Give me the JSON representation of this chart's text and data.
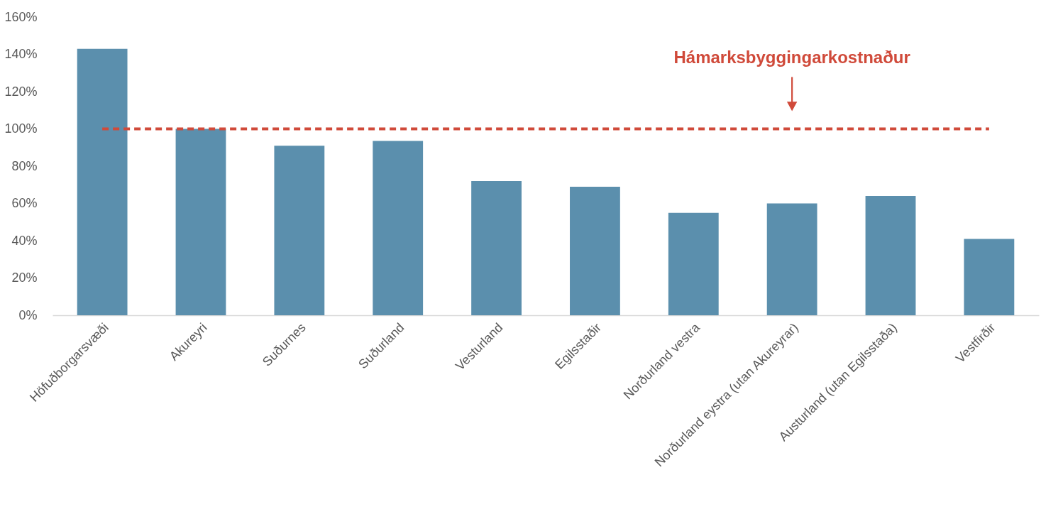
{
  "chart_data": {
    "type": "bar",
    "categories": [
      "Höfuðborgarsvæði",
      "Akureyri",
      "Suðurnes",
      "Suðurland",
      "Vesturland",
      "Egilsstaðir",
      "Norðurland vestra",
      "Norðurland eystra (utan Akureyrar)",
      "Austurland (utan Egilsstaða)",
      "Vestfirðir"
    ],
    "values": [
      143,
      100,
      91,
      93.5,
      72,
      69,
      55,
      60,
      64,
      41
    ],
    "color": "#5b8fad",
    "ylim": [
      0,
      160
    ],
    "yticks": [
      {
        "value": 0,
        "label": "0%"
      },
      {
        "value": 20,
        "label": "20%"
      },
      {
        "value": 40,
        "label": "40%"
      },
      {
        "value": 60,
        "label": "60%"
      },
      {
        "value": 80,
        "label": "80%"
      },
      {
        "value": 100,
        "label": "100%"
      },
      {
        "value": 120,
        "label": "120%"
      },
      {
        "value": 140,
        "label": "140%"
      },
      {
        "value": 160,
        "label": "160%"
      }
    ],
    "ref_lines": [
      {
        "axis": "y",
        "value": 100,
        "label": "Hámarksbyggingarkostnaður",
        "color": "#d04a3a",
        "line_style": "dashed"
      }
    ]
  }
}
